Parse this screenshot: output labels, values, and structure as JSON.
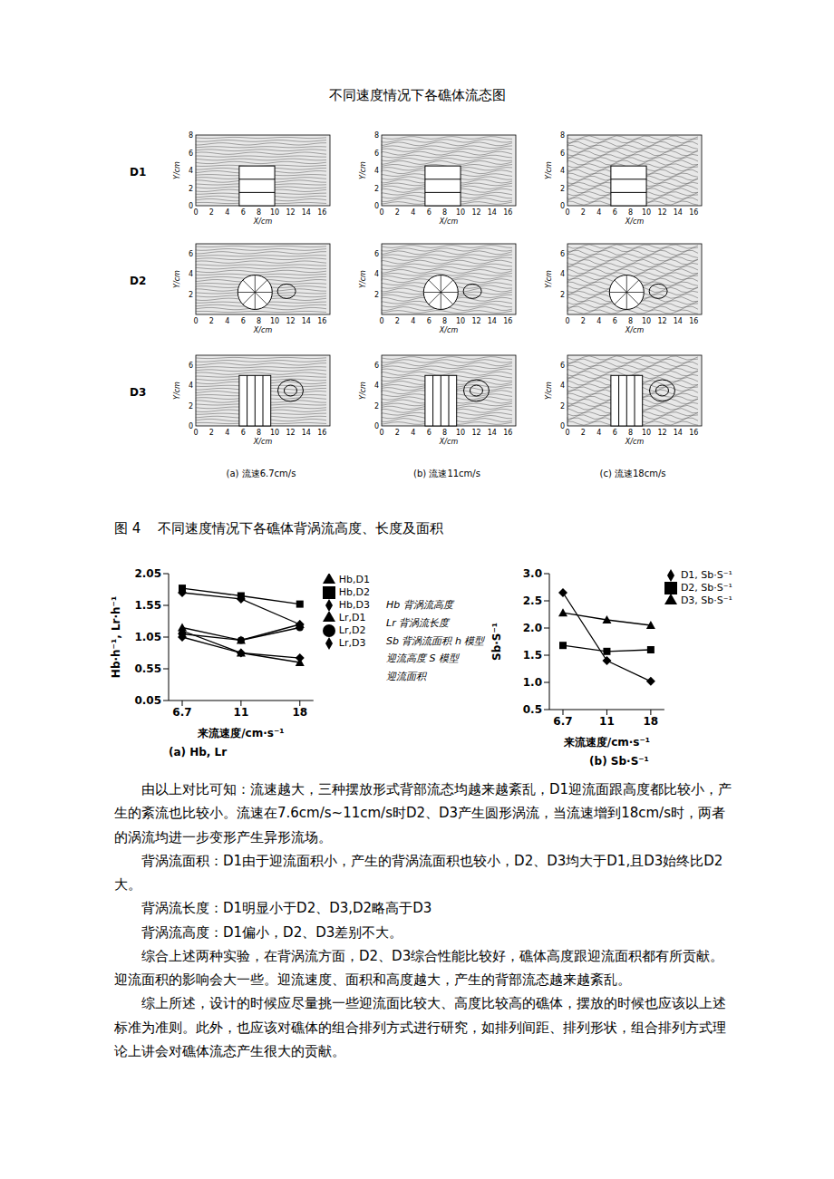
{
  "document": {
    "figure3": {
      "title": "不同速度情况下各礁体流态图",
      "row_labels": [
        "D1",
        "D2",
        "D3"
      ],
      "x_label": "X/cm",
      "y_label": "Y/cm",
      "x_ticks": [
        0,
        2,
        4,
        6,
        8,
        10,
        12,
        14,
        16
      ],
      "rows_y_ticks": [
        [
          0,
          2,
          4,
          6,
          8
        ],
        [
          2,
          4,
          6
        ],
        [
          0,
          2,
          4,
          6
        ]
      ],
      "captions": [
        "(a) 流速6.7cm/s",
        "(b) 流速11cm/s",
        "(c) 流速18cm/s"
      ]
    },
    "figure4": {
      "title": "图 4    不同速度情况下各礁体背涡流高度、长度及面积",
      "notes": [
        "Hb 背涡流高度",
        "Lr 背涡流长度",
        "Sb 背涡流面积 h 模型",
        "迎流高度 S 模型",
        "迎流面积"
      ]
    },
    "paragraphs": [
      "由以上对比可知：流速越大，三种摆放形式背部流态均越来越紊乱，D1迎流面跟高度都比较小，产生的紊流也比较小。流速在7.6cm/s~11cm/s时D2、D3产生圆形涡流，当流速增到18cm/s时，两者的涡流均进一步变形产生异形流场。",
      "背涡流面积：D1由于迎流面积小，产生的背涡流面积也较小，D2、D3均大于D1,且D3始终比D2大。",
      "背涡流长度：D1明显小于D2、D3,D2略高于D3",
      "背涡流高度：D1偏小，D2、D3差别不大。",
      "综合上述两种实验，在背涡流方面，D2、D3综合性能比较好，礁体高度跟迎流面积都有所贡献。迎流面积的影响会大一些。迎流速度、面积和高度越大，产生的背部流态越来越紊乱。",
      "综上所述，设计的时候应尽量挑一些迎流面比较大、高度比较高的礁体，摆放的时候也应该以上述标准为准则。此外，也应该对礁体的组合排列方式进行研究，如排列间距、排列形状，组合排列方式理论上讲会对礁体流态产生很大的贡献。"
    ]
  },
  "chart_data": [
    {
      "type": "line",
      "caption": "(a) Hb, Lr",
      "x_label": "来流速度/cm·s⁻¹",
      "y_label": "Hb·h⁻¹, Lr·h⁻¹",
      "categories": [
        "6.7",
        "11",
        "18"
      ],
      "ylim": [
        0.05,
        2.05
      ],
      "yticks": [
        0.05,
        0.55,
        1.05,
        1.55,
        2.05
      ],
      "legend": "right",
      "series": [
        {
          "name": "Hb,D2",
          "color": "#000000",
          "marker": "square",
          "values": [
            1.82,
            1.7,
            1.57
          ]
        },
        {
          "name": "Hb,D3",
          "color": "#000000",
          "marker": "diamond",
          "values": [
            1.75,
            1.65,
            1.25
          ]
        },
        {
          "name": "Hb,D1",
          "color": "#000000",
          "marker": "triangle",
          "values": [
            1.2,
            1.0,
            1.25
          ]
        },
        {
          "name": "Lr,D2",
          "color": "#000000",
          "marker": "circle",
          "values": [
            1.1,
            1.0,
            1.2
          ]
        },
        {
          "name": "Lr,D3",
          "color": "#000000",
          "marker": "diamond",
          "values": [
            1.05,
            0.8,
            0.72
          ]
        },
        {
          "name": "Lr,D1",
          "color": "#000000",
          "marker": "triangle",
          "values": [
            1.15,
            0.8,
            0.65
          ]
        }
      ]
    },
    {
      "type": "line",
      "caption": "(b) Sb·S⁻¹",
      "x_label": "来流速度/cm·s⁻¹",
      "y_label": "Sb·S⁻¹",
      "categories": [
        "6.7",
        "11",
        "18"
      ],
      "ylim": [
        0.5,
        3.0
      ],
      "yticks": [
        0.5,
        {
          "value": 1,
          "label": "1.0"
        },
        1.5,
        {
          "value": 2,
          "label": "2.0"
        },
        2.5,
        {
          "value": 3,
          "label": "3.0"
        }
      ],
      "legend": "top-right",
      "series": [
        {
          "name": "D1, Sb·S⁻¹",
          "color": "#000000",
          "marker": "diamond",
          "values": [
            2.65,
            1.4,
            1.02
          ]
        },
        {
          "name": "D2, Sb·S⁻¹",
          "color": "#000000",
          "marker": "square",
          "values": [
            1.68,
            1.57,
            1.6
          ]
        },
        {
          "name": "D3, Sb·S⁻¹",
          "color": "#000000",
          "marker": "triangle",
          "values": [
            2.28,
            2.15,
            2.05
          ]
        }
      ]
    }
  ]
}
